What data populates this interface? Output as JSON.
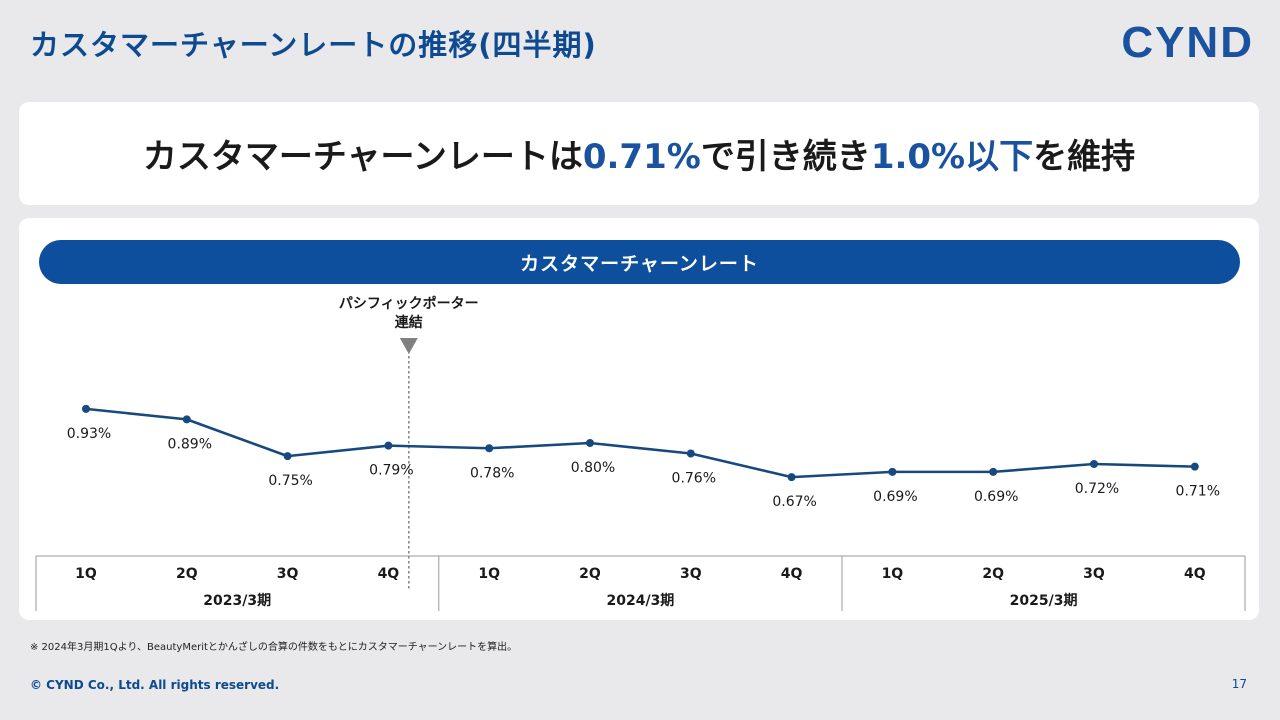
{
  "page": {
    "title": "カスタマーチャーンレートの推移(四半期)",
    "logo": "CYND",
    "headline": {
      "part1": "カスタマーチャーンレートは",
      "value1": "0.71%",
      "part2": "で引き続き",
      "value2": "1.0%以下",
      "part3": "を維持"
    },
    "footnote": "※ 2024年3月期1Qより、BeautyMeritとかんざしの合算の件数をもとにカスタマーチャーンレートを算出。",
    "copyright": "© CYND Co., Ltd. All rights reserved.",
    "page_number": "17"
  },
  "colors": {
    "accent": "#0d4f9c",
    "line": "#17497f",
    "marker": "#808080"
  },
  "chart_data": {
    "type": "line",
    "title": "カスタマーチャーンレート",
    "categories": [
      "1Q",
      "2Q",
      "3Q",
      "4Q",
      "1Q",
      "2Q",
      "3Q",
      "4Q",
      "1Q",
      "2Q",
      "3Q",
      "4Q"
    ],
    "groups": [
      {
        "label": "2023/3期",
        "span": 4
      },
      {
        "label": "2024/3期",
        "span": 4
      },
      {
        "label": "2025/3期",
        "span": 4
      }
    ],
    "series": [
      {
        "name": "カスタマーチャーンレート",
        "values": [
          0.93,
          0.89,
          0.75,
          0.79,
          0.78,
          0.8,
          0.76,
          0.67,
          0.69,
          0.69,
          0.72,
          0.71
        ]
      }
    ],
    "data_labels": [
      "0.93%",
      "0.89%",
      "0.75%",
      "0.79%",
      "0.78%",
      "0.80%",
      "0.76%",
      "0.67%",
      "0.69%",
      "0.69%",
      "0.72%",
      "0.71%"
    ],
    "annotation": {
      "lines": [
        "パシフィックポーター",
        "連結"
      ],
      "between_index": [
        3,
        4
      ]
    },
    "ylim": [
      0.4,
      1.2
    ],
    "grid": false,
    "legend": "none"
  }
}
